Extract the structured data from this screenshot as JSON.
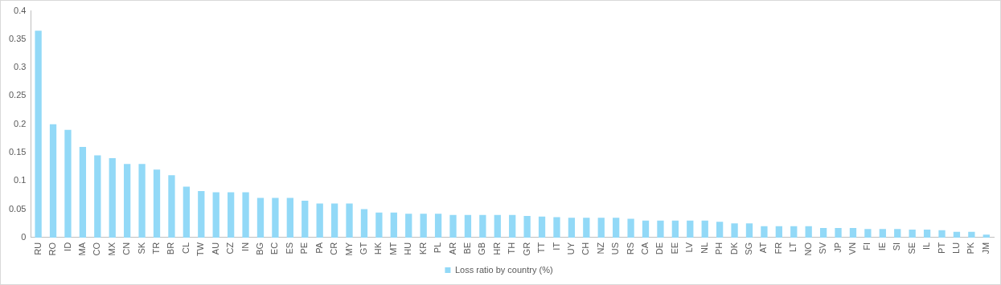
{
  "chart_data": {
    "type": "bar",
    "categories": [
      "RU",
      "RO",
      "ID",
      "MA",
      "CO",
      "MX",
      "CN",
      "SK",
      "TR",
      "BR",
      "CL",
      "TW",
      "AU",
      "CZ",
      "IN",
      "BG",
      "EC",
      "ES",
      "PE",
      "PA",
      "CR",
      "MY",
      "GT",
      "HK",
      "MT",
      "HU",
      "KR",
      "PL",
      "AR",
      "BE",
      "GB",
      "HR",
      "TH",
      "GR",
      "TT",
      "IT",
      "UY",
      "CH",
      "NZ",
      "US",
      "RS",
      "CA",
      "DE",
      "EE",
      "LV",
      "NL",
      "PH",
      "DK",
      "SG",
      "AT",
      "FR",
      "LT",
      "NO",
      "SV",
      "JP",
      "VN",
      "FI",
      "IE",
      "SI",
      "SE",
      "IL",
      "PT",
      "LU",
      "PK",
      "JM"
    ],
    "series": [
      {
        "name": "Loss ratio by country (%)",
        "color": "#92d9f7",
        "values": [
          0.365,
          0.2,
          0.19,
          0.16,
          0.145,
          0.14,
          0.13,
          0.13,
          0.12,
          0.11,
          0.09,
          0.082,
          0.08,
          0.08,
          0.08,
          0.07,
          0.07,
          0.07,
          0.065,
          0.06,
          0.06,
          0.06,
          0.05,
          0.044,
          0.044,
          0.042,
          0.042,
          0.042,
          0.04,
          0.04,
          0.04,
          0.04,
          0.04,
          0.038,
          0.037,
          0.036,
          0.035,
          0.035,
          0.035,
          0.035,
          0.033,
          0.03,
          0.03,
          0.03,
          0.03,
          0.03,
          0.028,
          0.025,
          0.025,
          0.02,
          0.02,
          0.02,
          0.02,
          0.017,
          0.017,
          0.017,
          0.015,
          0.015,
          0.015,
          0.014,
          0.014,
          0.013,
          0.01,
          0.01,
          0.005
        ]
      }
    ],
    "ylim": [
      0,
      0.4
    ],
    "yticks": [
      0,
      0.05,
      0.1,
      0.15,
      0.2,
      0.25,
      0.3,
      0.35,
      0.4
    ],
    "grid": false,
    "legend": "bottom"
  }
}
